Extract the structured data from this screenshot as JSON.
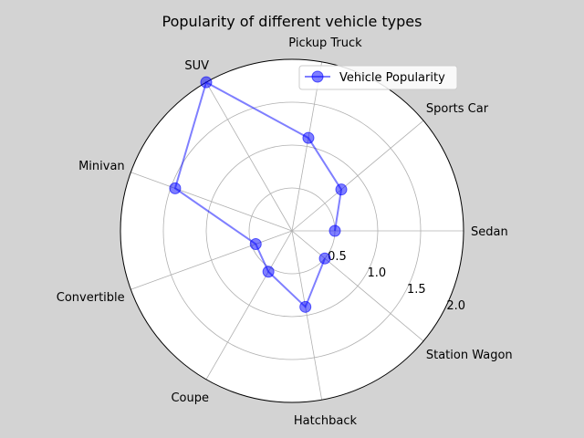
{
  "chart_data": {
    "type": "radar",
    "title": "Popularity of different vehicle types",
    "categories": [
      "Sedan",
      "Sports Car",
      "Pickup Truck",
      "SUV",
      "Minivan",
      "Convertible",
      "Coupe",
      "Hatchback",
      "Station Wagon"
    ],
    "series": [
      {
        "name": "Vehicle Popularity",
        "color": "#0000ff",
        "values": [
          0.5,
          0.75,
          1.1,
          2.0,
          1.45,
          0.45,
          0.55,
          0.9,
          0.5
        ]
      }
    ],
    "radial_ticks": [
      "0.5",
      "1.0",
      "1.5",
      "2.0"
    ],
    "rlim": [
      0,
      2.0
    ],
    "grid": true,
    "legend_position": "top-right"
  }
}
